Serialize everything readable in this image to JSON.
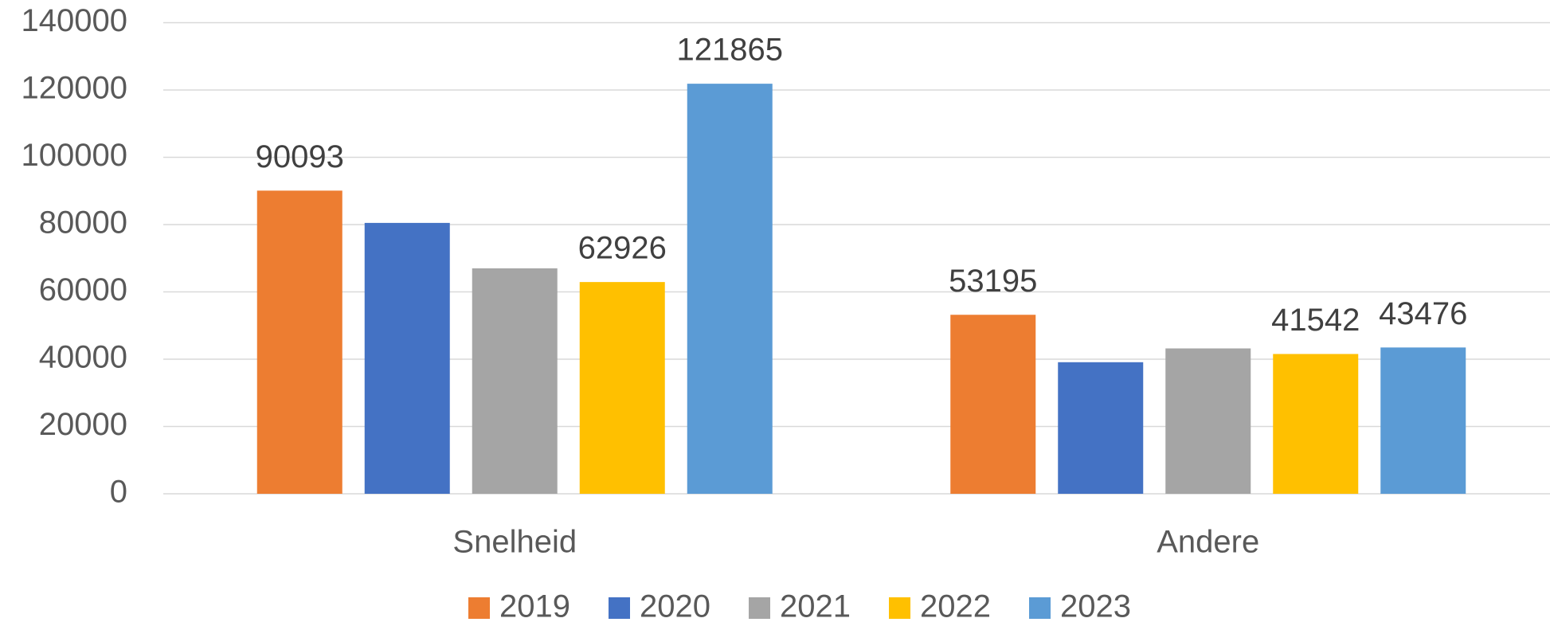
{
  "chart_data": {
    "type": "bar",
    "categories": [
      "Snelheid",
      "Andere"
    ],
    "series": [
      {
        "name": "2019",
        "color": "#ed7d31",
        "values": [
          90093,
          53195
        ],
        "labeled": [
          true,
          true
        ]
      },
      {
        "name": "2020",
        "color": "#4472c4",
        "values": [
          80500,
          39100
        ],
        "labeled": [
          false,
          false
        ]
      },
      {
        "name": "2021",
        "color": "#a5a5a5",
        "values": [
          67000,
          43200
        ],
        "labeled": [
          false,
          false
        ]
      },
      {
        "name": "2022",
        "color": "#ffc000",
        "values": [
          62926,
          41542
        ],
        "labeled": [
          true,
          true
        ]
      },
      {
        "name": "2023",
        "color": "#5b9bd5",
        "values": [
          121865,
          43476
        ],
        "labeled": [
          true,
          true
        ]
      }
    ],
    "ylim": [
      0,
      140000
    ],
    "yticks": [
      0,
      20000,
      40000,
      60000,
      80000,
      100000,
      120000,
      140000
    ],
    "grid": true,
    "legend": "bottom"
  }
}
